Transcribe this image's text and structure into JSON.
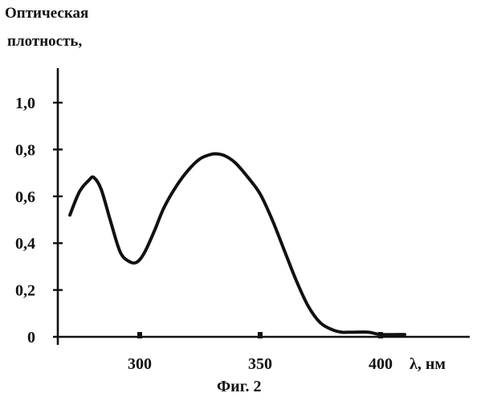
{
  "chart_data": {
    "type": "line",
    "ylabel_lines": [
      "Оптическая",
      "плотность,"
    ],
    "xlabel": "λ, нм",
    "caption": "Фиг. 2",
    "xlim": [
      268,
      410
    ],
    "ylim": [
      0,
      1.2
    ],
    "x_ticks": [
      300,
      350,
      400
    ],
    "x_tick_labels": [
      "300",
      "350",
      "400"
    ],
    "y_ticks": [
      0,
      0.2,
      0.4,
      0.6,
      0.8,
      1.0
    ],
    "y_tick_labels": [
      "0",
      "0,2",
      "0,4",
      "0,6",
      "0,8",
      "1,0"
    ],
    "series": [
      {
        "x": [
          271,
          275,
          279,
          281,
          284,
          288,
          292,
          296,
          299,
          302,
          306,
          310,
          315,
          320,
          325,
          330,
          333,
          336,
          340,
          345,
          350,
          355,
          360,
          365,
          370,
          375,
          380,
          384,
          388,
          395,
          400,
          410
        ],
        "y": [
          0.52,
          0.62,
          0.67,
          0.68,
          0.63,
          0.49,
          0.36,
          0.32,
          0.32,
          0.36,
          0.45,
          0.55,
          0.64,
          0.71,
          0.76,
          0.78,
          0.78,
          0.77,
          0.74,
          0.68,
          0.61,
          0.5,
          0.37,
          0.24,
          0.13,
          0.06,
          0.03,
          0.02,
          0.02,
          0.02,
          0.01,
          0.01
        ]
      }
    ]
  },
  "colors": {
    "ink": "#111111"
  }
}
